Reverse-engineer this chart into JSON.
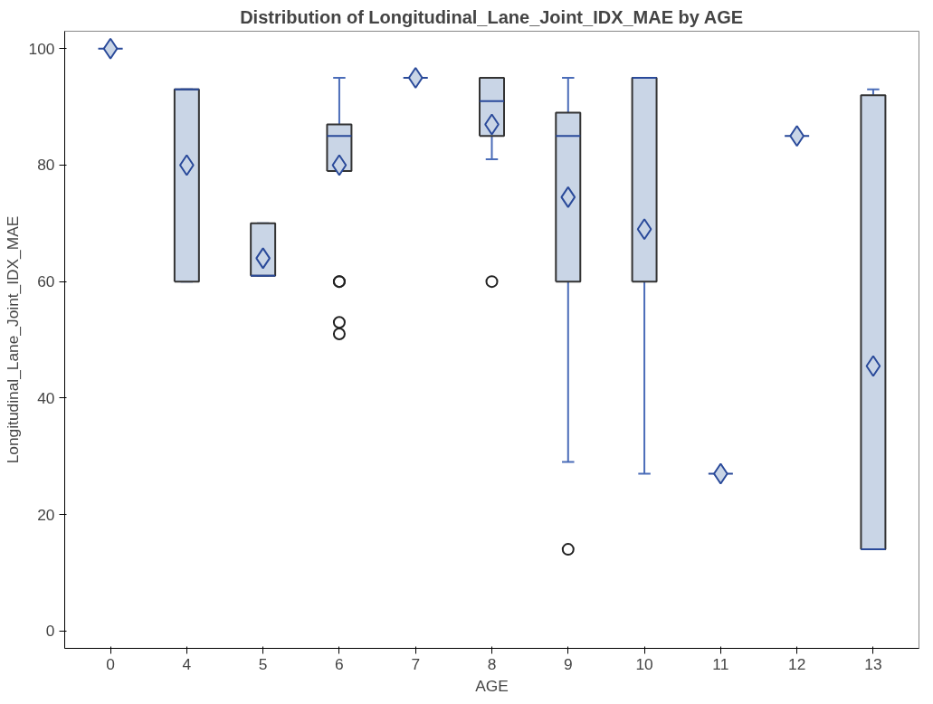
{
  "chart_data": {
    "type": "box",
    "title": "Distribution of Longitudinal_Lane_Joint_IDX_MAE by AGE",
    "xlabel": "AGE",
    "ylabel": "Longitudinal_Lane_Joint_IDX_MAE",
    "categories": [
      "0",
      "4",
      "5",
      "6",
      "7",
      "8",
      "9",
      "10",
      "11",
      "12",
      "13"
    ],
    "ylim": [
      -3,
      103
    ],
    "yticks": [
      0,
      20,
      40,
      60,
      80,
      100
    ],
    "grid": false,
    "color": "#c9d5e6",
    "boxes": [
      {
        "low": 100,
        "q1": 100,
        "median": 100,
        "q3": 100,
        "high": 100,
        "mean": 100
      },
      {
        "low": 60,
        "q1": 60,
        "median": 93,
        "q3": 93,
        "high": 93,
        "mean": 80
      },
      {
        "low": 61,
        "q1": 61,
        "median": 61,
        "q3": 70,
        "high": 70,
        "mean": 64
      },
      {
        "low": 79,
        "q1": 79,
        "median": 85,
        "q3": 87,
        "high": 95,
        "mean": 80,
        "outliers": [
          60,
          60,
          53,
          51
        ]
      },
      {
        "low": 95,
        "q1": 95,
        "median": 95,
        "q3": 95,
        "high": 95,
        "mean": 95
      },
      {
        "low": 81,
        "q1": 85,
        "median": 91,
        "q3": 95,
        "high": 95,
        "mean": 87,
        "outliers": [
          60
        ]
      },
      {
        "low": 29,
        "q1": 60,
        "median": 85,
        "q3": 89,
        "high": 95,
        "mean": 74.5,
        "outliers": [
          14
        ]
      },
      {
        "low": 27,
        "q1": 60,
        "median": 95,
        "q3": 95,
        "high": 95,
        "mean": 69
      },
      {
        "low": 27,
        "q1": 27,
        "median": 27,
        "q3": 27,
        "high": 27,
        "mean": 27
      },
      {
        "low": 85,
        "q1": 85,
        "median": 85,
        "q3": 85,
        "high": 85,
        "mean": 85
      },
      {
        "low": 14,
        "q1": 14,
        "median": 14,
        "q3": 92,
        "high": 93,
        "mean": 45.5
      }
    ]
  }
}
